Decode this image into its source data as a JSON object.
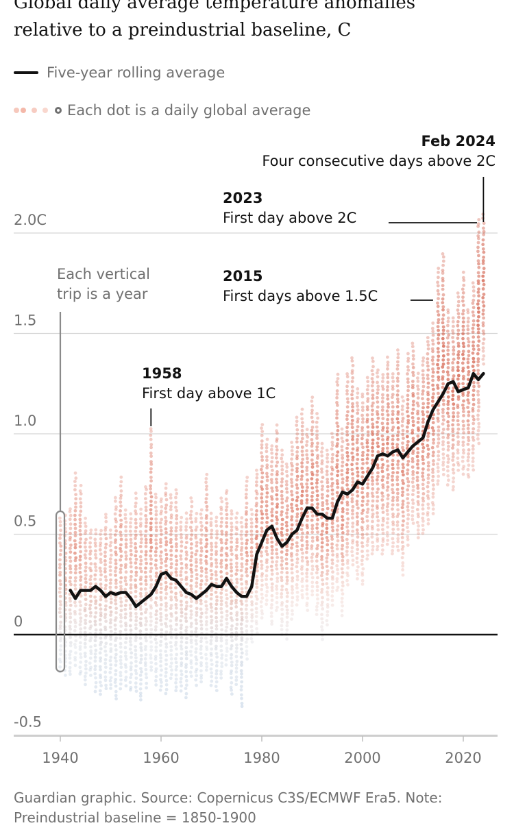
{
  "header": {
    "title_line1": "Global daily average temperature anomalies",
    "title_line2": "relative to a preindustrial baseline, C"
  },
  "legend": {
    "line_label": "Five-year rolling average",
    "dots_label": "Each dot is a daily global average"
  },
  "footer": {
    "line1": "Guardian graphic. Source: Copernicus C3S/ECMWF Era5. Note:",
    "line2": "Preindustrial baseline = 1850-1900"
  },
  "colors": {
    "accent_red": "#c9432b",
    "cold_blue": "#7f9fc2",
    "line": "#121212",
    "grid": "#d5d5d5",
    "text_muted": "#707070"
  },
  "chart_data": {
    "type": "scatter",
    "title": "Global daily average temperature anomalies relative to a preindustrial baseline, C",
    "xlabel": "",
    "ylabel": "",
    "xlim": [
      1936.5,
      2026
    ],
    "ylim": [
      -0.5,
      2.05
    ],
    "x_ticks": [
      1940,
      1960,
      1980,
      2000,
      2020
    ],
    "y_ticks": [
      {
        "value": -0.5,
        "label": "-0.5"
      },
      {
        "value": 0,
        "label": "0"
      },
      {
        "value": 0.5,
        "label": "0.5"
      },
      {
        "value": 1.0,
        "label": "1.0"
      },
      {
        "value": 1.5,
        "label": "1.5"
      },
      {
        "value": 2.0,
        "label": "2.0C"
      }
    ],
    "grid": true,
    "daily_ranges": [
      {
        "year": 1940,
        "min": -0.18,
        "max": 0.58
      },
      {
        "year": 1941,
        "min": -0.2,
        "max": 0.59
      },
      {
        "year": 1942,
        "min": -0.2,
        "max": 0.63
      },
      {
        "year": 1943,
        "min": -0.15,
        "max": 0.8
      },
      {
        "year": 1944,
        "min": -0.2,
        "max": 0.74
      },
      {
        "year": 1945,
        "min": -0.25,
        "max": 0.58
      },
      {
        "year": 1946,
        "min": -0.2,
        "max": 0.52
      },
      {
        "year": 1947,
        "min": -0.28,
        "max": 0.52
      },
      {
        "year": 1948,
        "min": -0.3,
        "max": 0.52
      },
      {
        "year": 1949,
        "min": -0.27,
        "max": 0.6
      },
      {
        "year": 1950,
        "min": -0.27,
        "max": 0.52
      },
      {
        "year": 1951,
        "min": -0.32,
        "max": 0.68
      },
      {
        "year": 1952,
        "min": -0.27,
        "max": 0.78
      },
      {
        "year": 1953,
        "min": -0.25,
        "max": 0.62
      },
      {
        "year": 1954,
        "min": -0.28,
        "max": 0.6
      },
      {
        "year": 1955,
        "min": -0.28,
        "max": 0.7
      },
      {
        "year": 1956,
        "min": -0.33,
        "max": 0.62
      },
      {
        "year": 1957,
        "min": -0.26,
        "max": 0.74
      },
      {
        "year": 1958,
        "min": -0.18,
        "max": 1.03
      },
      {
        "year": 1959,
        "min": -0.25,
        "max": 0.7
      },
      {
        "year": 1960,
        "min": -0.28,
        "max": 0.68
      },
      {
        "year": 1961,
        "min": -0.29,
        "max": 0.75
      },
      {
        "year": 1962,
        "min": -0.22,
        "max": 0.7
      },
      {
        "year": 1963,
        "min": -0.28,
        "max": 0.72
      },
      {
        "year": 1964,
        "min": -0.28,
        "max": 0.58
      },
      {
        "year": 1965,
        "min": -0.31,
        "max": 0.6
      },
      {
        "year": 1966,
        "min": -0.21,
        "max": 0.68
      },
      {
        "year": 1967,
        "min": -0.25,
        "max": 0.6
      },
      {
        "year": 1968,
        "min": -0.24,
        "max": 0.62
      },
      {
        "year": 1969,
        "min": -0.18,
        "max": 0.8
      },
      {
        "year": 1970,
        "min": -0.25,
        "max": 0.6
      },
      {
        "year": 1971,
        "min": -0.28,
        "max": 0.58
      },
      {
        "year": 1972,
        "min": -0.22,
        "max": 0.68
      },
      {
        "year": 1973,
        "min": -0.15,
        "max": 0.72
      },
      {
        "year": 1974,
        "min": -0.3,
        "max": 0.62
      },
      {
        "year": 1975,
        "min": -0.25,
        "max": 0.6
      },
      {
        "year": 1976,
        "min": -0.36,
        "max": 0.58
      },
      {
        "year": 1977,
        "min": -0.12,
        "max": 0.78
      },
      {
        "year": 1978,
        "min": -0.04,
        "max": 0.62
      },
      {
        "year": 1979,
        "min": 0.01,
        "max": 0.82
      },
      {
        "year": 1980,
        "min": 0.08,
        "max": 1.05
      },
      {
        "year": 1981,
        "min": 0.15,
        "max": 0.97
      },
      {
        "year": 1982,
        "min": 0.05,
        "max": 0.94
      },
      {
        "year": 1983,
        "min": 0.12,
        "max": 1.04
      },
      {
        "year": 1984,
        "min": 0.0,
        "max": 0.92
      },
      {
        "year": 1985,
        "min": -0.02,
        "max": 0.85
      },
      {
        "year": 1986,
        "min": 0.08,
        "max": 0.96
      },
      {
        "year": 1987,
        "min": 0.15,
        "max": 1.08
      },
      {
        "year": 1988,
        "min": 0.18,
        "max": 1.12
      },
      {
        "year": 1989,
        "min": 0.12,
        "max": 1.02
      },
      {
        "year": 1990,
        "min": 0.2,
        "max": 1.18
      },
      {
        "year": 1991,
        "min": 0.1,
        "max": 1.1
      },
      {
        "year": 1992,
        "min": -0.02,
        "max": 0.95
      },
      {
        "year": 1993,
        "min": 0.05,
        "max": 0.92
      },
      {
        "year": 1994,
        "min": 0.15,
        "max": 1.0
      },
      {
        "year": 1995,
        "min": 0.22,
        "max": 1.3
      },
      {
        "year": 1996,
        "min": 0.1,
        "max": 1.02
      },
      {
        "year": 1997,
        "min": 0.25,
        "max": 1.3
      },
      {
        "year": 1998,
        "min": 0.35,
        "max": 1.38
      },
      {
        "year": 1999,
        "min": 0.28,
        "max": 1.22
      },
      {
        "year": 2000,
        "min": 0.25,
        "max": 1.2
      },
      {
        "year": 2001,
        "min": 0.38,
        "max": 1.28
      },
      {
        "year": 2002,
        "min": 0.4,
        "max": 1.38
      },
      {
        "year": 2003,
        "min": 0.42,
        "max": 1.32
      },
      {
        "year": 2004,
        "min": 0.4,
        "max": 1.3
      },
      {
        "year": 2005,
        "min": 0.45,
        "max": 1.38
      },
      {
        "year": 2006,
        "min": 0.4,
        "max": 1.3
      },
      {
        "year": 2007,
        "min": 0.42,
        "max": 1.42
      },
      {
        "year": 2008,
        "min": 0.3,
        "max": 1.18
      },
      {
        "year": 2009,
        "min": 0.45,
        "max": 1.4
      },
      {
        "year": 2010,
        "min": 0.55,
        "max": 1.45
      },
      {
        "year": 2011,
        "min": 0.48,
        "max": 1.3
      },
      {
        "year": 2012,
        "min": 0.5,
        "max": 1.38
      },
      {
        "year": 2013,
        "min": 0.55,
        "max": 1.48
      },
      {
        "year": 2014,
        "min": 0.6,
        "max": 1.55
      },
      {
        "year": 2015,
        "min": 0.75,
        "max": 1.82
      },
      {
        "year": 2016,
        "min": 0.8,
        "max": 1.9
      },
      {
        "year": 2017,
        "min": 0.75,
        "max": 1.62
      },
      {
        "year": 2018,
        "min": 0.72,
        "max": 1.58
      },
      {
        "year": 2019,
        "min": 0.82,
        "max": 1.7
      },
      {
        "year": 2020,
        "min": 0.8,
        "max": 1.8
      },
      {
        "year": 2021,
        "min": 0.78,
        "max": 1.62
      },
      {
        "year": 2022,
        "min": 0.82,
        "max": 1.75
      },
      {
        "year": 2023,
        "min": 0.95,
        "max": 2.07
      },
      {
        "year": 2024,
        "min": 1.35,
        "max": 2.09
      }
    ],
    "rolling_average": {
      "name": "Five-year rolling average",
      "x": [
        1942,
        1943,
        1944,
        1945,
        1946,
        1947,
        1948,
        1949,
        1950,
        1951,
        1952,
        1953,
        1954,
        1955,
        1956,
        1957,
        1958,
        1959,
        1960,
        1961,
        1962,
        1963,
        1964,
        1965,
        1966,
        1967,
        1968,
        1969,
        1970,
        1971,
        1972,
        1973,
        1974,
        1975,
        1976,
        1977,
        1978,
        1979,
        1980,
        1981,
        1982,
        1983,
        1984,
        1985,
        1986,
        1987,
        1988,
        1989,
        1990,
        1991,
        1992,
        1993,
        1994,
        1995,
        1996,
        1997,
        1998,
        1999,
        2000,
        2001,
        2002,
        2003,
        2004,
        2005,
        2006,
        2007,
        2008,
        2009,
        2010,
        2011,
        2012,
        2013,
        2014,
        2015,
        2016,
        2017,
        2018,
        2019,
        2020,
        2021,
        2022,
        2023,
        2024
      ],
      "y": [
        0.22,
        0.18,
        0.22,
        0.22,
        0.22,
        0.24,
        0.22,
        0.19,
        0.21,
        0.2,
        0.21,
        0.21,
        0.18,
        0.14,
        0.16,
        0.18,
        0.2,
        0.24,
        0.3,
        0.31,
        0.28,
        0.27,
        0.24,
        0.21,
        0.2,
        0.18,
        0.2,
        0.22,
        0.25,
        0.24,
        0.24,
        0.28,
        0.24,
        0.21,
        0.19,
        0.19,
        0.24,
        0.4,
        0.46,
        0.52,
        0.54,
        0.48,
        0.44,
        0.46,
        0.5,
        0.52,
        0.58,
        0.63,
        0.63,
        0.6,
        0.6,
        0.58,
        0.58,
        0.66,
        0.71,
        0.7,
        0.72,
        0.76,
        0.75,
        0.79,
        0.83,
        0.89,
        0.9,
        0.89,
        0.91,
        0.92,
        0.88,
        0.91,
        0.94,
        0.96,
        0.98,
        1.06,
        1.12,
        1.16,
        1.2,
        1.25,
        1.26,
        1.21,
        1.22,
        1.23,
        1.3,
        1.27,
        1.3
      ]
    },
    "annotations": [
      {
        "id": "a1958",
        "year_label": "1958",
        "text": "First day above 1C",
        "x": 1958,
        "y": 1.03
      },
      {
        "id": "a2015",
        "year_label": "2015",
        "text": "First days above 1.5C",
        "x": 2015,
        "y": 1.52
      },
      {
        "id": "a2023",
        "year_label": "2023",
        "text": "First day above 2C",
        "x": 2023,
        "y": 2.04
      },
      {
        "id": "a2024",
        "year_label": "Feb 2024",
        "text": "Four consecutive days above 2C",
        "x": 2024,
        "y": 2.07
      }
    ],
    "trip_note": "Each vertical trip is a year"
  }
}
